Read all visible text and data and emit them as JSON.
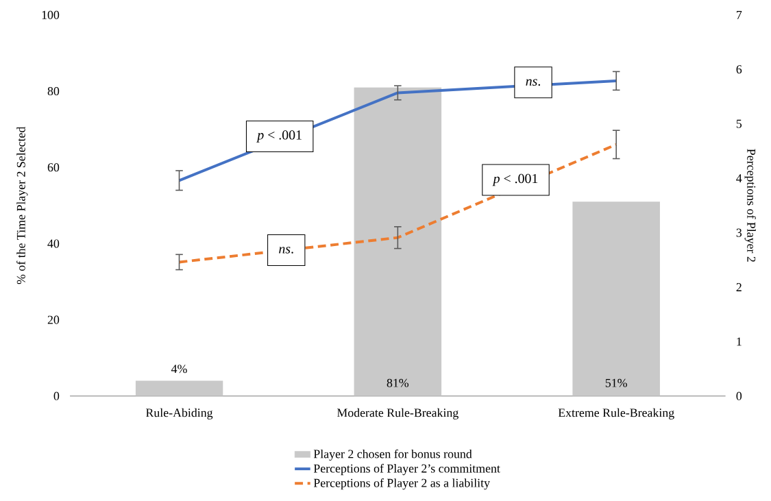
{
  "chart_data": {
    "type": "bar",
    "categories": [
      "Rule-Abiding",
      "Moderate Rule-Breaking",
      "Extreme Rule-Breaking"
    ],
    "ylabel": "% of the Time Player 2 Selected",
    "y2label": "Perceptions of Player 2",
    "ylim": [
      0,
      100
    ],
    "yticks": [
      0,
      20,
      40,
      60,
      80,
      100
    ],
    "y2lim": [
      0,
      7
    ],
    "y2ticks": [
      0,
      1,
      2,
      3,
      4,
      5,
      6,
      7
    ],
    "legend": "bottom",
    "grid": false,
    "series": [
      {
        "name": "Player 2 chosen for bonus round",
        "color": "#c9c9c9",
        "values": [
          4,
          81,
          51
        ],
        "value_labels": [
          "4%",
          "81%",
          "51%"
        ]
      },
      {
        "name": "Perceptions of Player 2’s commitment",
        "type": "line",
        "axis": "y2",
        "color": "#4472c4",
        "line_style": "solid",
        "values": [
          3.96,
          5.57,
          5.79
        ],
        "errors": [
          0.18,
          0.13,
          0.17
        ]
      },
      {
        "name": "Perceptions of Player 2 as a liability",
        "type": "line",
        "axis": "y2",
        "color": "#ed7d31",
        "line_style": "dashed",
        "values": [
          2.46,
          2.91,
          4.62
        ],
        "errors": [
          0.14,
          0.2,
          0.26
        ]
      }
    ],
    "annotations": [
      "*p* < .001",
      "*ns*.",
      "*ns*.",
      "*p* < .001"
    ]
  }
}
